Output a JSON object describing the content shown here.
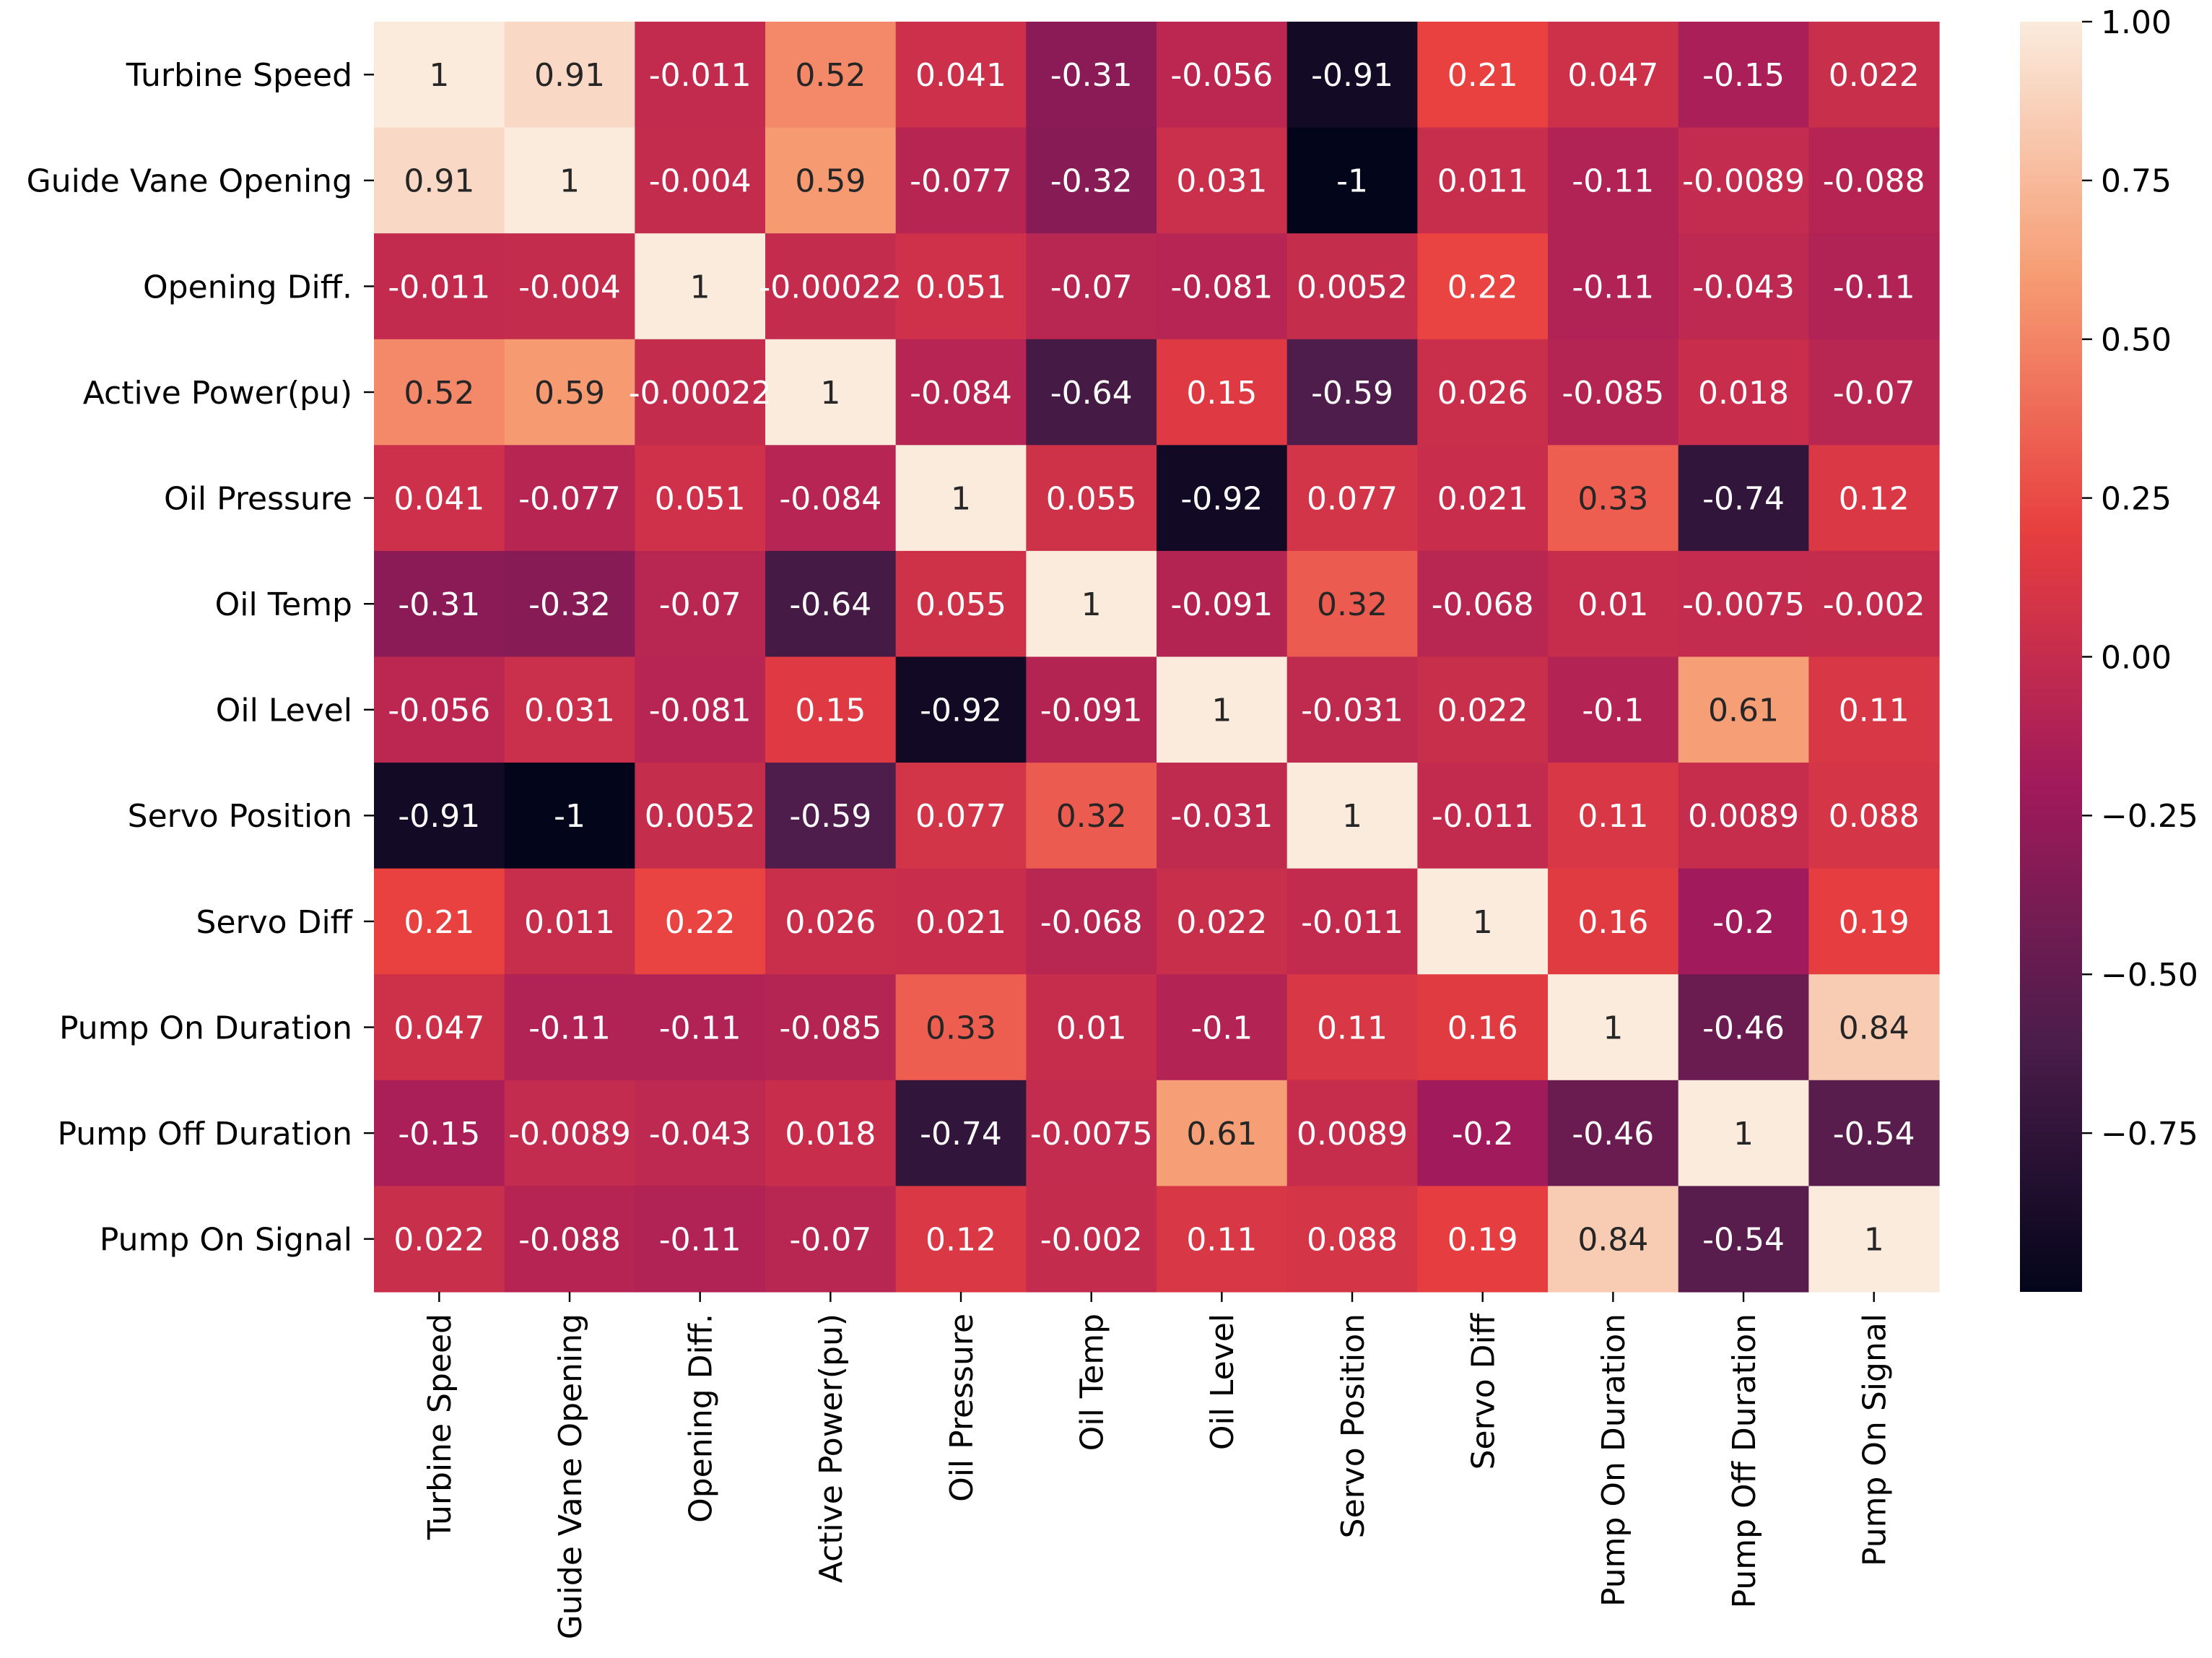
{
  "chart_data": {
    "type": "heatmap",
    "title": "",
    "xlabel": "",
    "ylabel": "",
    "row_labels": [
      "Turbine Speed",
      "Guide Vane Opening",
      "Opening Diff.",
      "Active Power(pu)",
      "Oil Pressure",
      "Oil Temp",
      "Oil Level",
      "Servo Position",
      "Servo Diff",
      "Pump On Duration",
      "Pump Off Duration",
      "Pump On Signal"
    ],
    "col_labels": [
      "Turbine Speed",
      "Guide Vane Opening",
      "Opening Diff.",
      "Active Power(pu)",
      "Oil Pressure",
      "Oil Temp",
      "Oil Level",
      "Servo Position",
      "Servo Diff",
      "Pump On Duration",
      "Pump Off Duration",
      "Pump On Signal"
    ],
    "values": [
      [
        1,
        0.91,
        -0.011,
        0.52,
        0.041,
        -0.31,
        -0.056,
        -0.91,
        0.21,
        0.047,
        -0.15,
        0.022
      ],
      [
        0.91,
        1,
        -0.004,
        0.59,
        -0.077,
        -0.32,
        0.031,
        -1,
        0.011,
        -0.11,
        -0.0089,
        -0.088
      ],
      [
        -0.011,
        -0.004,
        1,
        -0.00022,
        0.051,
        -0.07,
        -0.081,
        0.0052,
        0.22,
        -0.11,
        -0.043,
        -0.11
      ],
      [
        0.52,
        0.59,
        -0.00022,
        1,
        -0.084,
        -0.64,
        0.15,
        -0.59,
        0.026,
        -0.085,
        0.018,
        -0.07
      ],
      [
        0.041,
        -0.077,
        0.051,
        -0.084,
        1,
        0.055,
        -0.92,
        0.077,
        0.021,
        0.33,
        -0.74,
        0.12
      ],
      [
        -0.31,
        -0.32,
        -0.07,
        -0.64,
        0.055,
        1,
        -0.091,
        0.32,
        -0.068,
        0.01,
        -0.0075,
        -0.002
      ],
      [
        -0.056,
        0.031,
        -0.081,
        0.15,
        -0.92,
        -0.091,
        1,
        -0.031,
        0.022,
        -0.1,
        0.61,
        0.11
      ],
      [
        -0.91,
        -1,
        0.0052,
        -0.59,
        0.077,
        0.32,
        -0.031,
        1,
        -0.011,
        0.11,
        0.0089,
        0.088
      ],
      [
        0.21,
        0.011,
        0.22,
        0.026,
        0.021,
        -0.068,
        0.022,
        -0.011,
        1,
        0.16,
        -0.2,
        0.19
      ],
      [
        0.047,
        -0.11,
        -0.11,
        -0.085,
        0.33,
        0.01,
        -0.1,
        0.11,
        0.16,
        1,
        -0.46,
        0.84
      ],
      [
        -0.15,
        -0.0089,
        -0.043,
        0.018,
        -0.74,
        -0.0075,
        0.61,
        0.0089,
        -0.2,
        -0.46,
        1,
        -0.54
      ],
      [
        0.022,
        -0.088,
        -0.11,
        -0.07,
        0.12,
        -0.002,
        0.11,
        0.088,
        0.19,
        0.84,
        -0.54,
        1
      ]
    ],
    "colorbar": {
      "range": [
        -1,
        1
      ],
      "ticks": [
        1.0,
        0.75,
        0.5,
        0.25,
        0.0,
        -0.25,
        -0.5,
        -0.75
      ],
      "tick_labels": [
        "1.00",
        "0.75",
        "0.50",
        "0.25",
        "0.00",
        "−0.25",
        "−0.50",
        "−0.75"
      ]
    },
    "colormap": "rocket",
    "colormap_stops": [
      "#03051a",
      "#4c1d4b",
      "#a11a5b",
      "#e83f3f",
      "#f69c73",
      "#faebdd"
    ],
    "annotation_text_dark": "#262626",
    "annotation_text_light": "#ffffff"
  }
}
